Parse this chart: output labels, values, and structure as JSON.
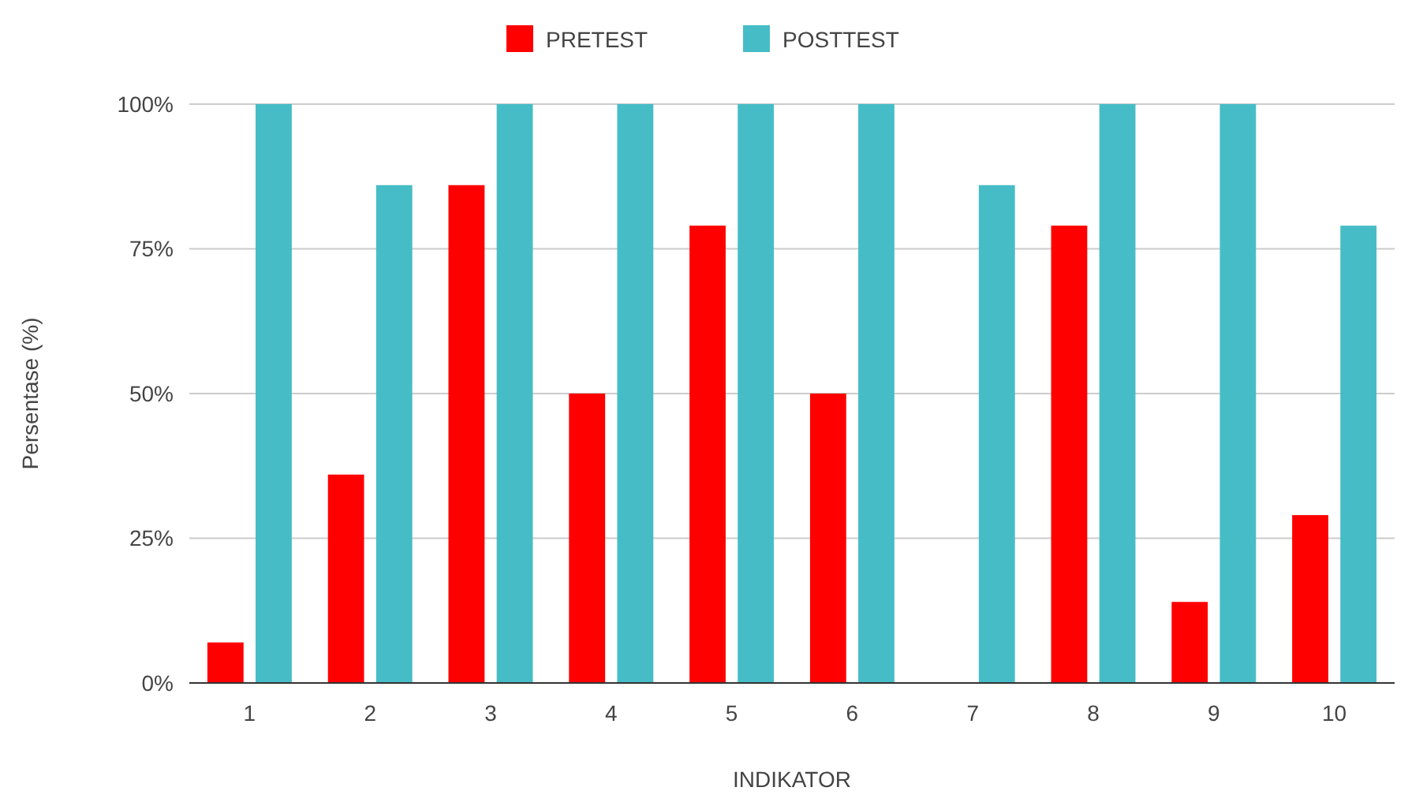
{
  "chart_data": {
    "type": "bar",
    "xlabel": "INDIKATOR",
    "ylabel": "Persentase (%)",
    "categories": [
      "1",
      "2",
      "3",
      "4",
      "5",
      "6",
      "7",
      "8",
      "9",
      "10"
    ],
    "series": [
      {
        "name": "PRETEST",
        "color": "#ff0000",
        "values": [
          7,
          36,
          86,
          50,
          79,
          50,
          0,
          79,
          14,
          29
        ]
      },
      {
        "name": "POSTTEST",
        "color": "#46bdc6",
        "values": [
          100,
          86,
          100,
          100,
          100,
          100,
          86,
          100,
          100,
          79
        ]
      }
    ],
    "ylim": [
      0,
      100
    ],
    "yticks": [
      {
        "value": 0,
        "label": "0%"
      },
      {
        "value": 25,
        "label": "25%"
      },
      {
        "value": 50,
        "label": "50%"
      },
      {
        "value": 75,
        "label": "75%"
      },
      {
        "value": 100,
        "label": "100%"
      }
    ],
    "grid": "y",
    "legend": "top"
  }
}
